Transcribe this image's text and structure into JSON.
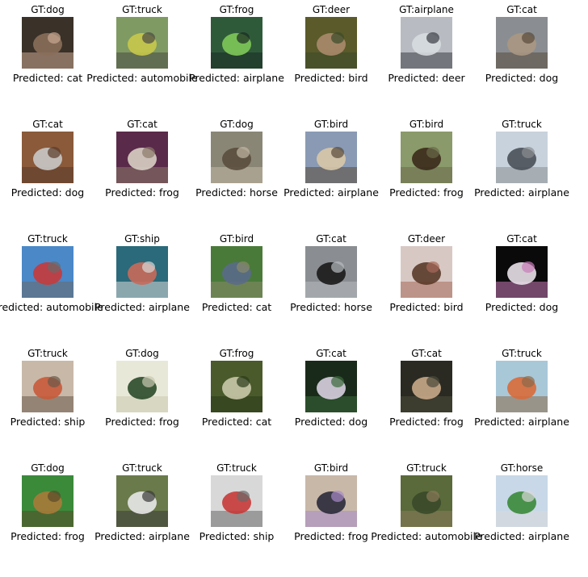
{
  "grid": {
    "rows": [
      [
        {
          "gt": "GT:dog",
          "pred": "Predicted: cat",
          "subject": "dog",
          "colors": [
            "#3a3128",
            "#8a6f5a",
            "#c9a690"
          ]
        },
        {
          "gt": "GT:truck",
          "pred": "Predicted: automobile",
          "subject": "truck",
          "colors": [
            "#7f9a63",
            "#c8c84a",
            "#4a4a44"
          ]
        },
        {
          "gt": "GT:frog",
          "pred": "Predicted: airplane",
          "subject": "frog",
          "colors": [
            "#2f5a3a",
            "#7fc85a",
            "#1a2a22"
          ]
        },
        {
          "gt": "GT:deer",
          "pred": "Predicted: bird",
          "subject": "deer",
          "colors": [
            "#5a5a2a",
            "#a88a6a",
            "#3a4a28"
          ]
        },
        {
          "gt": "GT:airplane",
          "pred": "Predicted: deer",
          "subject": "airplane",
          "colors": [
            "#b8bcc2",
            "#d7dbe0",
            "#3a3d44"
          ]
        },
        {
          "gt": "GT:cat",
          "pred": "Predicted: dog",
          "subject": "cat",
          "colors": [
            "#8a8e92",
            "#a89782",
            "#5a4a3c"
          ]
        }
      ],
      [
        {
          "gt": "GT:cat",
          "pred": "Predicted: dog",
          "subject": "cat",
          "colors": [
            "#8a5a3a",
            "#c8c8c8",
            "#5a3a2a"
          ]
        },
        {
          "gt": "GT:cat",
          "pred": "Predicted: frog",
          "subject": "cat",
          "colors": [
            "#5a2a4a",
            "#d8cfc4",
            "#8a7a6a"
          ]
        },
        {
          "gt": "GT:dog",
          "pred": "Predicted: horse",
          "subject": "dog",
          "colors": [
            "#8a8676",
            "#5a4e3e",
            "#c2b8a4"
          ]
        },
        {
          "gt": "GT:bird",
          "pred": "Predicted: airplane",
          "subject": "bird",
          "colors": [
            "#8a9ab4",
            "#d8c8a8",
            "#5a4a3a"
          ]
        },
        {
          "gt": "GT:bird",
          "pred": "Predicted: frog",
          "subject": "bird",
          "colors": [
            "#8a9a6a",
            "#3a2a1a",
            "#6a6a4a"
          ]
        },
        {
          "gt": "GT:truck",
          "pred": "Predicted: airplane",
          "subject": "truck",
          "colors": [
            "#c8d2dc",
            "#4a5058",
            "#8a8e92"
          ]
        }
      ],
      [
        {
          "gt": "GT:truck",
          "pred": "Predicted: automobile",
          "subject": "truck",
          "colors": [
            "#4a88c8",
            "#c83a3a",
            "#6a6a6a"
          ]
        },
        {
          "gt": "GT:ship",
          "pred": "Predicted: airplane",
          "subject": "ship",
          "colors": [
            "#2a6a7a",
            "#c86a5a",
            "#d8d8d8"
          ]
        },
        {
          "gt": "GT:bird",
          "pred": "Predicted: cat",
          "subject": "bird",
          "colors": [
            "#4a7a3a",
            "#5a6a8a",
            "#8a8a6a"
          ]
        },
        {
          "gt": "GT:cat",
          "pred": "Predicted: horse",
          "subject": "cat",
          "colors": [
            "#8a8e92",
            "#1a1a1a",
            "#b8bcc0"
          ]
        },
        {
          "gt": "GT:deer",
          "pred": "Predicted: bird",
          "subject": "deer",
          "colors": [
            "#d8c8c4",
            "#5a3a2a",
            "#a86a5a"
          ]
        },
        {
          "gt": "GT:cat",
          "pred": "Predicted: dog",
          "subject": "cat",
          "colors": [
            "#0a0a0a",
            "#e8e0e8",
            "#c87ab8"
          ]
        }
      ],
      [
        {
          "gt": "GT:truck",
          "pred": "Predicted: ship",
          "subject": "truck",
          "colors": [
            "#c8b8a8",
            "#c85a3a",
            "#6a5a4a"
          ]
        },
        {
          "gt": "GT:dog",
          "pred": "Predicted: frog",
          "subject": "dog",
          "colors": [
            "#e8e8d8",
            "#2a4a2a",
            "#c8c8b0"
          ]
        },
        {
          "gt": "GT:frog",
          "pred": "Predicted: cat",
          "subject": "frog",
          "colors": [
            "#4a5a2a",
            "#c8c8a8",
            "#2a3a1a"
          ]
        },
        {
          "gt": "GT:cat",
          "pred": "Predicted: dog",
          "subject": "cat",
          "colors": [
            "#1a2a1a",
            "#d8d0e0",
            "#3a6a3a"
          ]
        },
        {
          "gt": "GT:cat",
          "pred": "Predicted: frog",
          "subject": "cat",
          "colors": [
            "#2a2a22",
            "#c8a888",
            "#4a4a3a"
          ]
        },
        {
          "gt": "GT:truck",
          "pred": "Predicted: airplane",
          "subject": "truck",
          "colors": [
            "#a8c8d8",
            "#d86a3a",
            "#8a6a4a"
          ]
        }
      ],
      [
        {
          "gt": "GT:dog",
          "pred": "Predicted: frog",
          "subject": "dog",
          "colors": [
            "#3a8a3a",
            "#a87a3a",
            "#5a4a2a"
          ]
        },
        {
          "gt": "GT:truck",
          "pred": "Predicted: airplane",
          "subject": "truck",
          "colors": [
            "#6a7a4a",
            "#e8e8e8",
            "#3a3a3a"
          ]
        },
        {
          "gt": "GT:truck",
          "pred": "Predicted: ship",
          "subject": "truck",
          "colors": [
            "#d8d8d8",
            "#c83a3a",
            "#6a6a6a"
          ]
        },
        {
          "gt": "GT:bird",
          "pred": "Predicted: frog",
          "subject": "bird",
          "colors": [
            "#c8b8a8",
            "#2a2a3a",
            "#a88ac8"
          ]
        },
        {
          "gt": "GT:truck",
          "pred": "Predicted: automobile",
          "subject": "truck",
          "colors": [
            "#5a6a3a",
            "#3a4a2a",
            "#8a7a5a"
          ]
        },
        {
          "gt": "GT:horse",
          "pred": "Predicted: airplane",
          "subject": "horse",
          "colors": [
            "#c8d8e8",
            "#3a8a3a",
            "#d8d8d8"
          ]
        }
      ]
    ]
  }
}
